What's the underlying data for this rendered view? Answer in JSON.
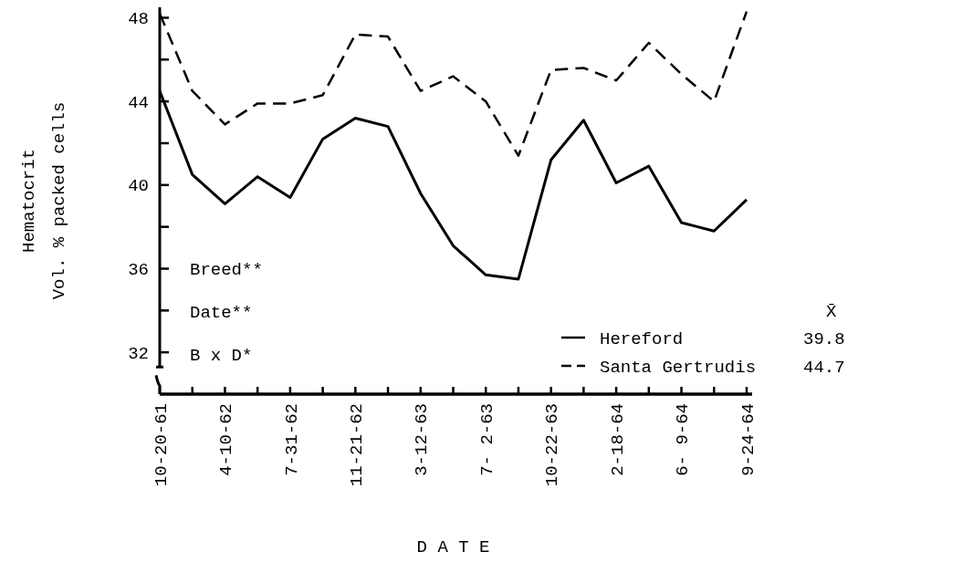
{
  "chart_data": {
    "type": "line",
    "xlabel": "D A T E",
    "ylabel": "Hematocrit\nVol. % packed cells",
    "categories": [
      "10-20-61",
      null,
      "4-10-62",
      null,
      "7-31-62",
      null,
      "11-21-62",
      null,
      "3-12-63",
      null,
      "7- 2-63",
      null,
      "10-22-63",
      null,
      "2-18-64",
      null,
      "6- 9-64",
      null,
      "9-24-64"
    ],
    "series": [
      {
        "name": "Hereford",
        "color": "#000000",
        "line_style": "solid",
        "values": [
          44.5,
          40.5,
          39.1,
          40.4,
          39.4,
          42.2,
          43.2,
          42.8,
          39.6,
          37.1,
          35.7,
          35.5,
          41.2,
          43.1,
          40.1,
          40.9,
          38.2,
          37.8,
          39.3
        ]
      },
      {
        "name": "Santa Gertrudis",
        "color": "#000000",
        "line_style": "dashed",
        "values": [
          48.2,
          44.5,
          42.9,
          43.9,
          43.9,
          44.3,
          47.2,
          47.1,
          44.5,
          45.2,
          44.0,
          41.4,
          45.5,
          45.6,
          45.0,
          46.8,
          45.3,
          44.0,
          48.3
        ]
      }
    ],
    "ylim": [
      30,
      48.5
    ],
    "yticks": [
      32,
      {
        "value": 34,
        "label": null
      },
      36,
      {
        "value": 38,
        "label": null
      },
      40,
      {
        "value": 42,
        "label": null
      },
      44,
      {
        "value": 46,
        "label": null
      },
      48
    ],
    "legend": "bottom right",
    "grid": false,
    "annotations": [
      "Breed**",
      "Date**",
      "B x D*",
      "X̄",
      "39.8",
      "44.7"
    ]
  }
}
